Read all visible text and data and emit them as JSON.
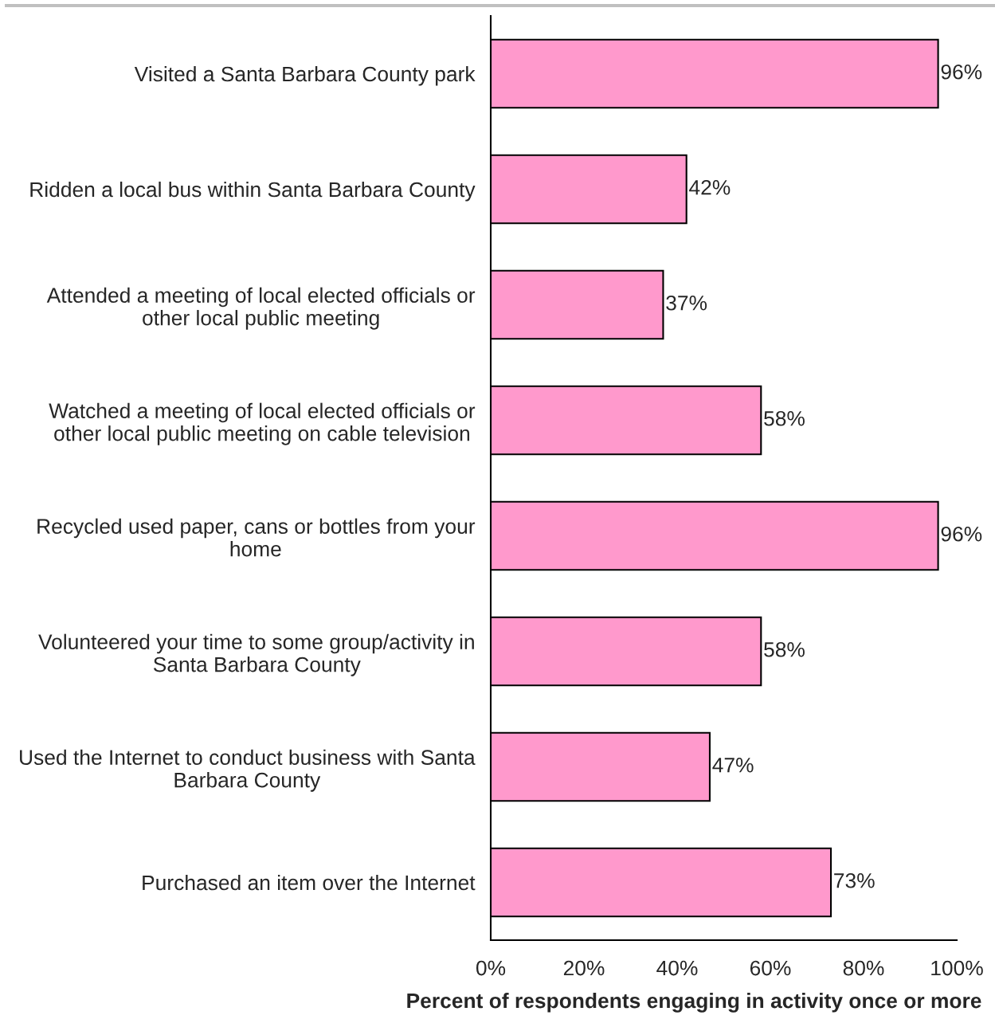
{
  "chart_data": {
    "type": "bar",
    "orientation": "horizontal",
    "categories": [
      "Visited a Santa Barbara County park",
      "Ridden a local bus within Santa Barbara County",
      "Attended a meeting of local elected officials or\nother local public meeting",
      "Watched a meeting of local elected officials or\nother local public meeting on cable television",
      "Recycled used paper, cans or bottles from your\nhome",
      "Volunteered your time to some group/activity in\nSanta Barbara County",
      "Used the Internet to conduct business with Santa\nBarbara County",
      "Purchased an item over the Internet"
    ],
    "values": [
      96,
      42,
      37,
      58,
      96,
      58,
      47,
      73
    ],
    "value_labels": [
      "96%",
      "42%",
      "37%",
      "58%",
      "96%",
      "58%",
      "47%",
      "73%"
    ],
    "color": "#ff99cc",
    "xlabel": "Percent of respondents engaging in activity once or more",
    "xlim": [
      0,
      100
    ],
    "xticks": [
      {
        "value": 0,
        "label": "0%"
      },
      {
        "value": 20,
        "label": "20%"
      },
      {
        "value": 40,
        "label": "40%"
      },
      {
        "value": 60,
        "label": "60%"
      },
      {
        "value": 80,
        "label": "80%"
      },
      {
        "value": 100,
        "label": "100%"
      }
    ]
  }
}
